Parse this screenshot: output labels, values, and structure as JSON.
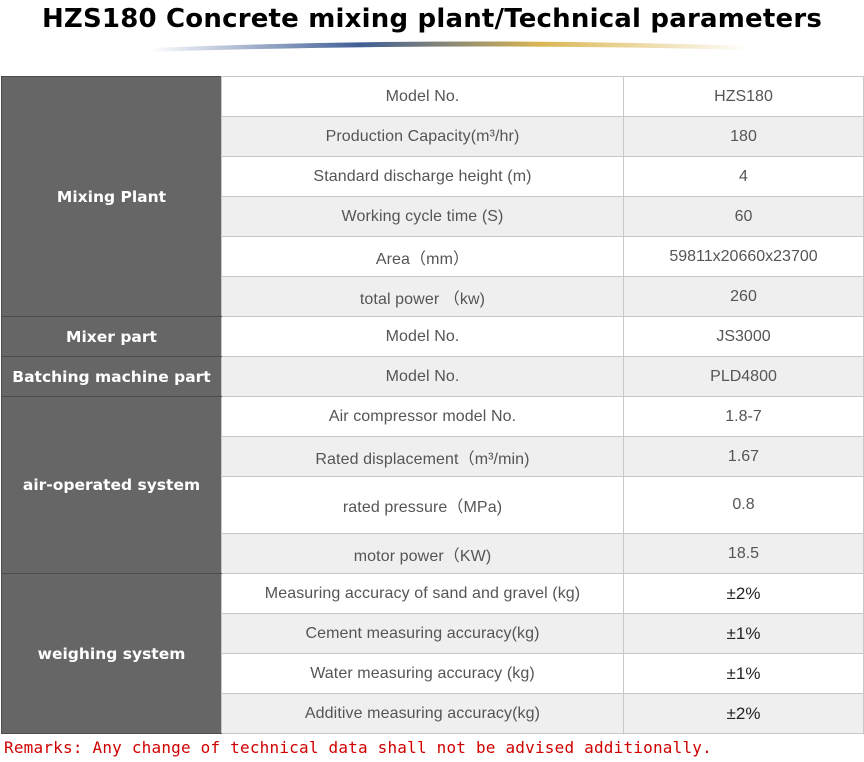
{
  "title": "HZS180 Concrete mixing plant/Technical parameters",
  "groups": {
    "mixing_plant": "Mixing Plant",
    "mixer_part": "Mixer part",
    "batching": "Batching machine part",
    "air_system": "air-operated system",
    "weighing": "weighing system"
  },
  "rows": [
    {
      "param": "Model No.",
      "value": "HZS180"
    },
    {
      "param": "Production Capacity(m³/hr)",
      "value": "180"
    },
    {
      "param": "Standard discharge height (m)",
      "value": "4"
    },
    {
      "param": "Working cycle time (S)",
      "value": "60"
    },
    {
      "param": "Area（mm）",
      "value": "59811x20660x23700"
    },
    {
      "param": "total power （kw)",
      "value": "260"
    },
    {
      "param": "Model No.",
      "value": "JS3000"
    },
    {
      "param": "Model No.",
      "value": "PLD4800"
    },
    {
      "param": "Air compressor model No.",
      "value": "1.8-7"
    },
    {
      "param": "Rated displacement（m³/min)",
      "value": "1.67"
    },
    {
      "param": "rated pressure（MPa)",
      "value": "0.8"
    },
    {
      "param": "motor power（KW)",
      "value": "18.5"
    },
    {
      "param": "Measuring accuracy of sand and gravel (kg)",
      "value": "±2%"
    },
    {
      "param": "Cement measuring accuracy(kg)",
      "value": "±1%"
    },
    {
      "param": "Water measuring accuracy (kg)",
      "value": "±1%"
    },
    {
      "param": "Additive measuring accuracy(kg)",
      "value": "±2%"
    }
  ],
  "remarks": "Remarks: Any change of technical data shall not be advised additionally.",
  "colors": {
    "group_bg": "#666666",
    "alt_row_bg": "#efefef",
    "remarks_text": "#d00000",
    "swoosh": "#d9b24a"
  }
}
